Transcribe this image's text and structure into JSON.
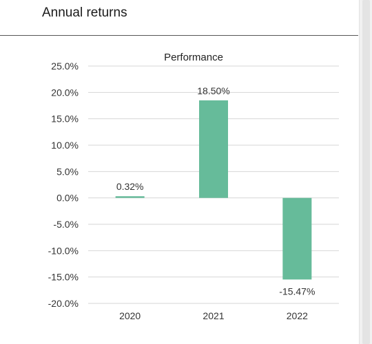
{
  "header": {
    "title": "Annual returns"
  },
  "chart_data": {
    "type": "bar",
    "title": "Performance",
    "categories": [
      "2020",
      "2021",
      "2022"
    ],
    "values": [
      0.32,
      18.5,
      -15.47
    ],
    "value_labels": [
      "0.32%",
      "18.50%",
      "-15.47%"
    ],
    "y_ticks": [
      25,
      20,
      15,
      10,
      5,
      0,
      -5,
      -10,
      -15,
      -20
    ],
    "y_tick_labels": [
      "25.0%",
      "20.0%",
      "15.0%",
      "10.0%",
      "5.0%",
      "0.0%",
      "-5.0%",
      "-10.0%",
      "-15.0%",
      "-20.0%"
    ],
    "ylim": [
      -20,
      25
    ],
    "xlabel": "",
    "ylabel": "",
    "grid": true,
    "legend": "none",
    "bar_color": "#66bb9a",
    "grid_color": "#d6d6d6"
  }
}
